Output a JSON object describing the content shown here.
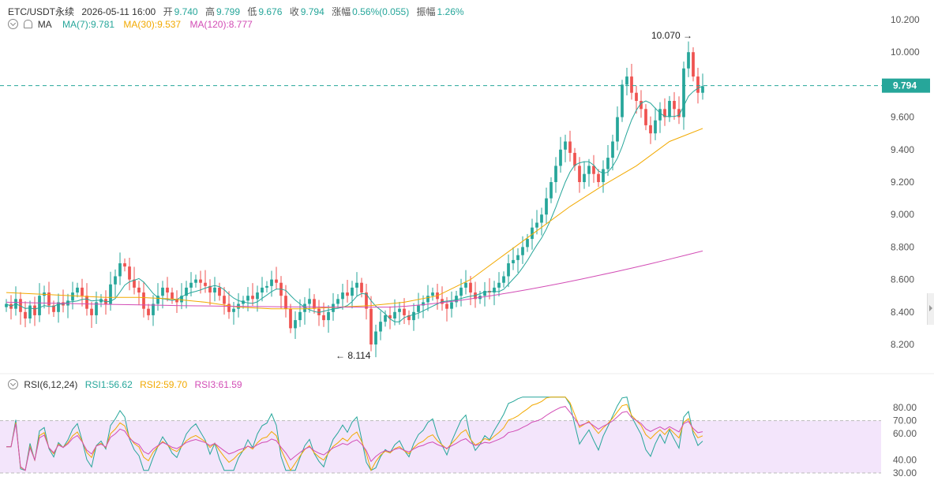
{
  "header": {
    "symbol": "ETC/USDT永续",
    "datetime": "2026-05-11 16:00",
    "open_label": "开",
    "open": "9.740",
    "high_label": "高",
    "high": "9.799",
    "low_label": "低",
    "low": "9.676",
    "close_label": "收",
    "close": "9.794",
    "change_label": "涨幅",
    "change": "0.56%(0.055)",
    "amplitude_label": "振幅",
    "amplitude": "1.26%"
  },
  "ma_row": {
    "title": "MA",
    "ma7": "MA(7):9.781",
    "ma30": "MA(30):9.537",
    "ma120": "MA(120):8.777"
  },
  "rsi_row": {
    "title": "RSI(6,12,24)",
    "rsi1": "RSI1:56.62",
    "rsi2": "RSI2:59.70",
    "rsi3": "RSI3:61.59"
  },
  "colors": {
    "up": "#26a69a",
    "down": "#ef5350",
    "ma7": "#26a69a",
    "ma30": "#f2a900",
    "ma120": "#d24cb5",
    "rsi_band": "#f3e5fb"
  },
  "chart_data": [
    {
      "type": "candlestick",
      "ylim": [
        8.1,
        10.3
      ],
      "y_ticks": [
        "10.200",
        "10.000",
        "9.600",
        "9.400",
        "9.200",
        "9.000",
        "8.800",
        "8.600",
        "8.400",
        "8.200"
      ],
      "current_price": "9.794",
      "max_label": "10.070",
      "min_label": "8.114",
      "close_series": [
        8.45,
        8.42,
        8.48,
        8.4,
        8.36,
        8.44,
        8.38,
        8.5,
        8.52,
        8.44,
        8.4,
        8.46,
        8.44,
        8.47,
        8.52,
        8.55,
        8.5,
        8.42,
        8.38,
        8.46,
        8.48,
        8.45,
        8.57,
        8.62,
        8.7,
        8.68,
        8.6,
        8.55,
        8.52,
        8.42,
        8.38,
        8.45,
        8.5,
        8.55,
        8.52,
        8.48,
        8.46,
        8.5,
        8.55,
        8.58,
        8.6,
        8.58,
        8.56,
        8.52,
        8.55,
        8.5,
        8.45,
        8.4,
        8.42,
        8.45,
        8.47,
        8.5,
        8.48,
        8.52,
        8.55,
        8.56,
        8.6,
        8.58,
        8.5,
        8.42,
        8.3,
        8.35,
        8.4,
        8.45,
        8.48,
        8.42,
        8.38,
        8.35,
        8.4,
        8.45,
        8.48,
        8.52,
        8.5,
        8.55,
        8.58,
        8.52,
        8.42,
        8.2,
        8.28,
        8.34,
        8.38,
        8.36,
        8.4,
        8.42,
        8.38,
        8.35,
        8.4,
        8.44,
        8.46,
        8.5,
        8.52,
        8.48,
        8.45,
        8.42,
        8.46,
        8.5,
        8.55,
        8.58,
        8.52,
        8.48,
        8.5,
        8.53,
        8.52,
        8.55,
        8.58,
        8.62,
        8.7,
        8.72,
        8.75,
        8.8,
        8.85,
        8.92,
        8.95,
        9.0,
        9.1,
        9.2,
        9.3,
        9.4,
        9.45,
        9.38,
        9.3,
        9.2,
        9.25,
        9.3,
        9.25,
        9.2,
        9.28,
        9.35,
        9.45,
        9.6,
        9.8,
        9.85,
        9.75,
        9.7,
        9.65,
        9.55,
        9.5,
        9.58,
        9.65,
        9.6,
        9.7,
        9.65,
        9.6,
        9.9,
        10.0,
        9.85,
        9.75,
        9.79
      ],
      "ma30_anchor": [
        8.52,
        8.51,
        8.5,
        8.49,
        8.49,
        8.48,
        8.46,
        8.43,
        8.42,
        8.42,
        8.43,
        8.44,
        8.46,
        8.5,
        8.6,
        8.75,
        8.9,
        9.05,
        9.18,
        9.3,
        9.45,
        9.53
      ]
    },
    {
      "type": "line",
      "ylim": [
        28,
        90
      ],
      "y_ticks": [
        "80.00",
        "70.00",
        "60.00",
        "40.00",
        "30.00"
      ],
      "series": [
        {
          "name": "RSI1"
        },
        {
          "name": "RSI2"
        },
        {
          "name": "RSI3"
        }
      ]
    }
  ]
}
